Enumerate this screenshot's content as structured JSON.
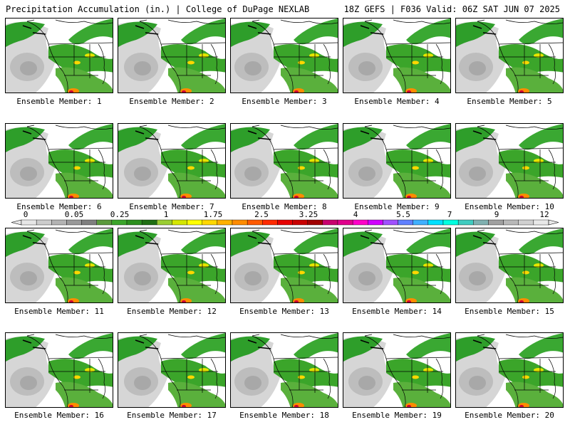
{
  "header": {
    "title": "Precipitation Accumulation (in.) | College of DuPage NEXLAB",
    "run_info": "18Z GEFS | F036 Valid: 06Z SAT JUN 07 2025"
  },
  "colorbar": {
    "tick_labels": [
      "0",
      "0.05",
      "0.25",
      "1",
      "1.75",
      "2.5",
      "3.25",
      "4",
      "5.5",
      "7",
      "9",
      "12"
    ],
    "colors": [
      "#e6e6e6",
      "#cccccc",
      "#b3b3b3",
      "#999999",
      "#7f7f7f",
      "#5a9a3c",
      "#3ba52a",
      "#2c8f1d",
      "#1f6e12",
      "#9acd32",
      "#d4e600",
      "#ffff00",
      "#ffd700",
      "#ffb000",
      "#ff8c00",
      "#ff5a00",
      "#ff2a00",
      "#e60000",
      "#c80000",
      "#a00000",
      "#c8006e",
      "#e0008c",
      "#ff00c8",
      "#d000ff",
      "#a050ff",
      "#6080ff",
      "#40b0ff",
      "#00e0ff",
      "#00ffe0",
      "#40ccc0",
      "#80b0b0",
      "#a0a0a0",
      "#b8b8b8",
      "#d0d0d0",
      "#e8e8e8"
    ]
  },
  "members": [
    {
      "label": "Ensemble Member: 1"
    },
    {
      "label": "Ensemble Member: 2"
    },
    {
      "label": "Ensemble Member: 3"
    },
    {
      "label": "Ensemble Member: 4"
    },
    {
      "label": "Ensemble Member: 5"
    },
    {
      "label": "Ensemble Member: 6"
    },
    {
      "label": "Ensemble Member: 7"
    },
    {
      "label": "Ensemble Member: 8"
    },
    {
      "label": "Ensemble Member: 9"
    },
    {
      "label": "Ensemble Member: 10"
    },
    {
      "label": "Ensemble Member: 11"
    },
    {
      "label": "Ensemble Member: 12"
    },
    {
      "label": "Ensemble Member: 13"
    },
    {
      "label": "Ensemble Member: 14"
    },
    {
      "label": "Ensemble Member: 15"
    },
    {
      "label": "Ensemble Member: 16"
    },
    {
      "label": "Ensemble Member: 17"
    },
    {
      "label": "Ensemble Member: 18"
    },
    {
      "label": "Ensemble Member: 19"
    },
    {
      "label": "Ensemble Member: 20"
    }
  ]
}
